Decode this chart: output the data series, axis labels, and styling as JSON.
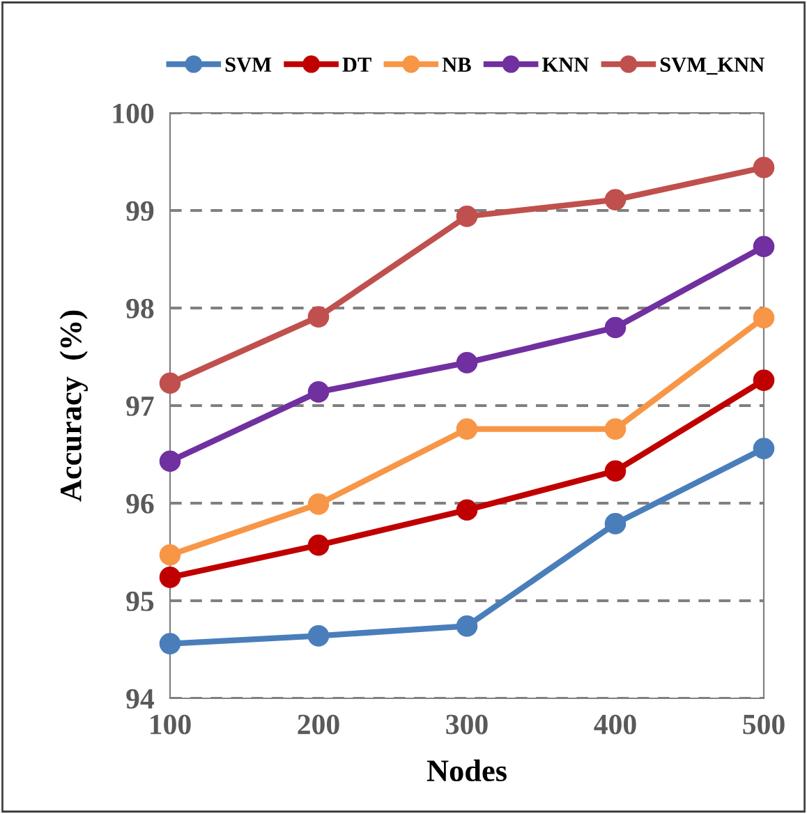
{
  "chart_data": {
    "type": "line",
    "xlabel": "Nodes",
    "ylabel": "Accuracy  (%)",
    "x": [
      100,
      200,
      300,
      400,
      500
    ],
    "series": [
      {
        "name": "SVM",
        "color": "#4a7ebb",
        "values": [
          94.56,
          94.64,
          94.74,
          95.79,
          96.56
        ]
      },
      {
        "name": "DT",
        "color": "#c00000",
        "values": [
          95.24,
          95.57,
          95.93,
          96.33,
          97.26
        ]
      },
      {
        "name": "NB",
        "color": "#f79646",
        "values": [
          95.47,
          95.99,
          96.76,
          96.76,
          97.9
        ]
      },
      {
        "name": "KNN",
        "color": "#7030a0",
        "values": [
          96.43,
          97.14,
          97.44,
          97.8,
          98.63
        ]
      },
      {
        "name": "SVM_KNN",
        "color": "#c0504d",
        "values": [
          97.23,
          97.91,
          98.94,
          99.11,
          99.44
        ]
      }
    ],
    "xlim": [
      100,
      500
    ],
    "xticks": [
      100,
      200,
      300,
      400,
      500
    ],
    "ylim": [
      94,
      100
    ],
    "yticks": [
      94,
      95,
      96,
      97,
      98,
      99,
      100
    ],
    "grid": "y",
    "legend": "top",
    "marker": "circle",
    "line_style": "solid"
  }
}
